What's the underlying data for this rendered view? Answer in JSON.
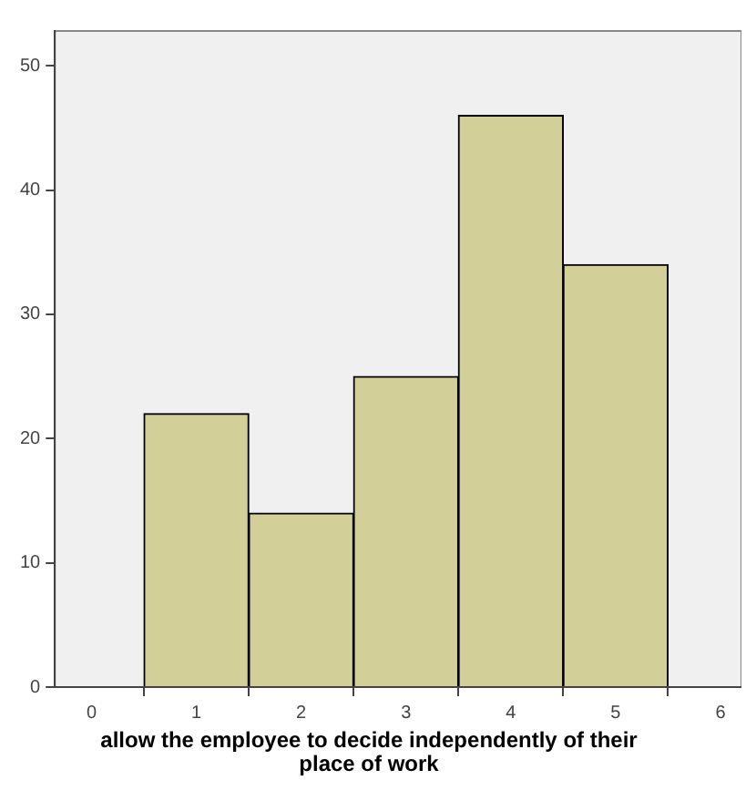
{
  "chart_data": {
    "type": "histogram",
    "xlabel": "allow the employee to decide independently of their place of work",
    "bins": [
      0.5,
      1.5,
      2.5,
      3.5,
      4.5,
      5.5
    ],
    "values": [
      22,
      14,
      25,
      46,
      34
    ],
    "color": "#d3cf98",
    "xlim": [
      -0.35,
      6.2
    ],
    "xticks": [
      0,
      1,
      2,
      3,
      4,
      5,
      6
    ],
    "ylim": [
      0,
      52.8
    ],
    "yticks": [
      0,
      10,
      20,
      30,
      40,
      50
    ],
    "grid": false
  }
}
